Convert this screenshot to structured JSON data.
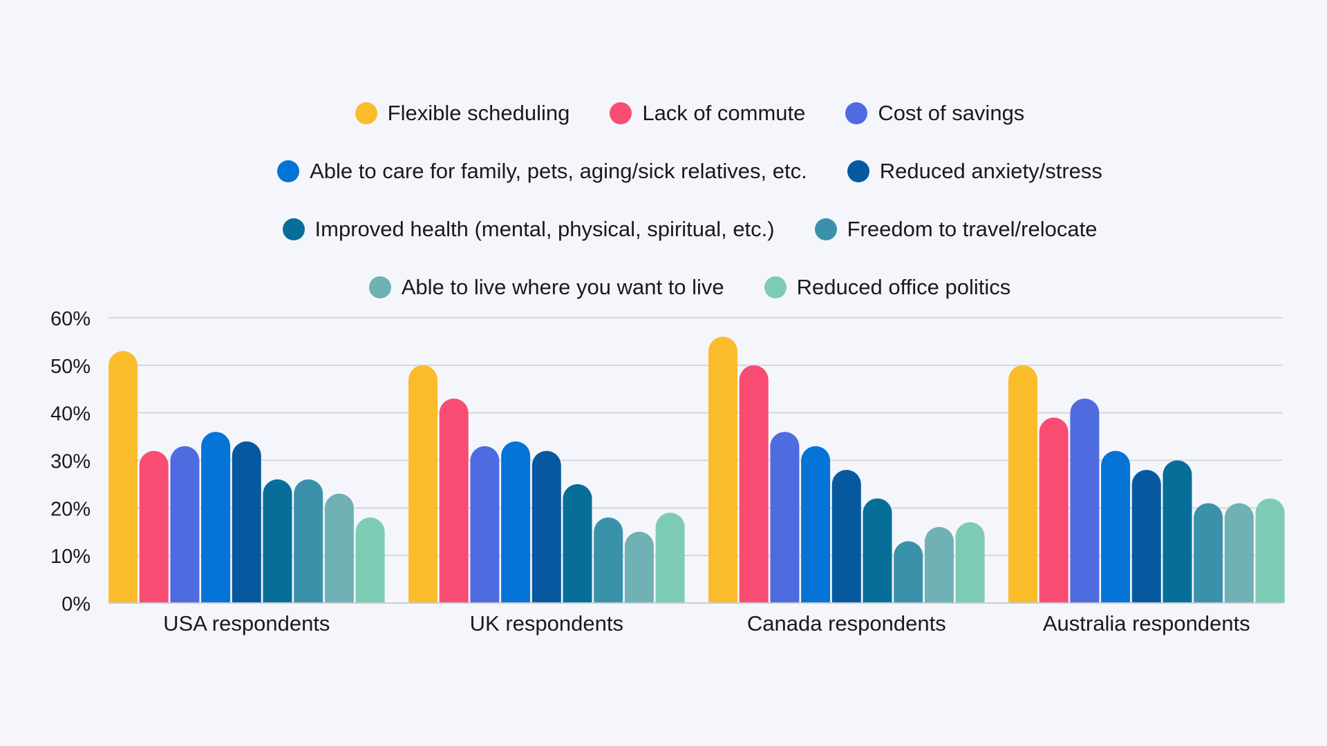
{
  "chart_data": {
    "type": "bar",
    "title": "",
    "xlabel": "",
    "ylabel": "",
    "ylim": [
      0,
      60
    ],
    "yticks": [
      "0%",
      "10%",
      "20%",
      "30%",
      "40%",
      "50%",
      "60%"
    ],
    "grid": true,
    "legend_placement": "top",
    "categories": [
      "USA respondents",
      "UK respondents",
      "Canada respondents",
      "Australia respondents"
    ],
    "series": [
      {
        "name": "Flexible scheduling",
        "color": "#FBBC2C",
        "values": [
          53,
          50,
          56,
          50
        ]
      },
      {
        "name": "Lack of commute",
        "color": "#F94C72",
        "values": [
          32,
          43,
          50,
          39
        ]
      },
      {
        "name": "Cost of savings",
        "color": "#4F6BE0",
        "values": [
          33,
          33,
          36,
          43
        ]
      },
      {
        "name": "Able to care for family, pets, aging/sick relatives, etc.",
        "color": "#0674D6",
        "values": [
          36,
          34,
          33,
          32
        ]
      },
      {
        "name": "Reduced anxiety/stress",
        "color": "#07599F",
        "values": [
          34,
          32,
          28,
          28
        ]
      },
      {
        "name": "Improved health (mental, physical, spiritual, etc.)",
        "color": "#066E98",
        "values": [
          26,
          25,
          22,
          30
        ]
      },
      {
        "name": "Freedom to travel/relocate",
        "color": "#3A92AA",
        "values": [
          26,
          18,
          13,
          21
        ]
      },
      {
        "name": "Able to live where you want to live",
        "color": "#6FB1B5",
        "values": [
          23,
          15,
          16,
          21
        ]
      },
      {
        "name": "Reduced office politics",
        "color": "#7DCBB5",
        "values": [
          18,
          19,
          17,
          22
        ]
      }
    ]
  },
  "legend_rows": [
    [
      0,
      1,
      2
    ],
    [
      3,
      4
    ],
    [
      5,
      6
    ],
    [
      7,
      8
    ]
  ]
}
